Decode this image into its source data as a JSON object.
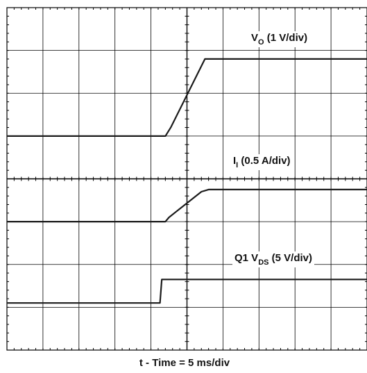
{
  "chart_data": {
    "type": "line",
    "xlabel": "t - Time = 5 ms/div",
    "divisions": {
      "x": 10,
      "y": 8
    },
    "grid": true,
    "traces": [
      {
        "name": "V_O",
        "label_main": "V",
        "label_sub": "O",
        "label_rest": " (1 V/div)",
        "units_per_div": "1 V/div",
        "points": [
          [
            0,
            5.0
          ],
          [
            4.4,
            5.0
          ],
          [
            4.55,
            5.2
          ],
          [
            5.5,
            6.8
          ],
          [
            10,
            6.8
          ]
        ]
      },
      {
        "name": "I_I",
        "label_main": "I",
        "label_sub": "I",
        "label_rest": " (0.5 A/div)",
        "units_per_div": "0.5 A/div",
        "points": [
          [
            0,
            3.0
          ],
          [
            4.4,
            3.0
          ],
          [
            4.5,
            3.1
          ],
          [
            4.8,
            3.3
          ],
          [
            5.4,
            3.7
          ],
          [
            5.6,
            3.75
          ],
          [
            10,
            3.75
          ]
        ]
      },
      {
        "name": "Q1 V_DS",
        "label_main": "Q1 V",
        "label_sub": "DS",
        "label_rest": " (5 V/div)",
        "units_per_div": "5 V/div",
        "points": [
          [
            0,
            1.1
          ],
          [
            4.25,
            1.1
          ],
          [
            4.3,
            1.65
          ],
          [
            10,
            1.65
          ]
        ]
      }
    ]
  }
}
